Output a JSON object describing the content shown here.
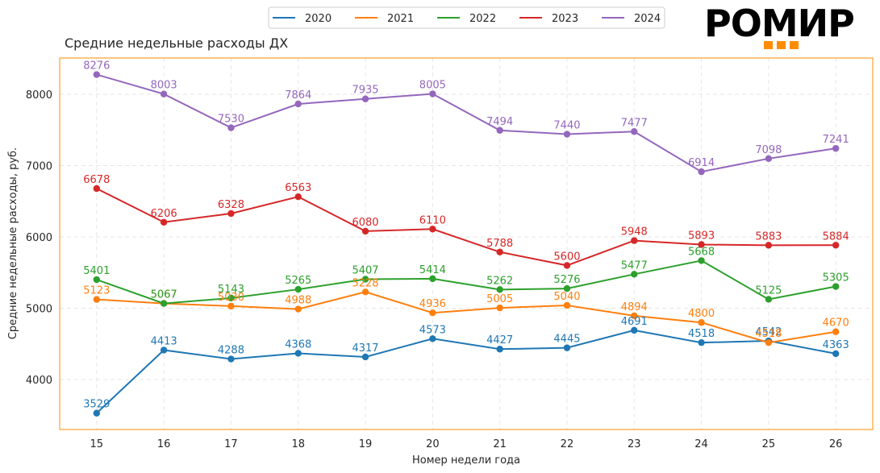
{
  "logo": {
    "text": "РОМИР",
    "accent_color": "#ff8c00"
  },
  "chart_data": {
    "type": "line",
    "title": "Средние недельные расходы ДХ",
    "xlabel": "Номер недели года",
    "ylabel": "Средние недельные расходы, руб.",
    "x": [
      15,
      16,
      17,
      18,
      19,
      20,
      21,
      22,
      23,
      24,
      25,
      26
    ],
    "xticks": [
      "15",
      "16",
      "17",
      "18",
      "19",
      "20",
      "21",
      "22",
      "23",
      "24",
      "25",
      "26"
    ],
    "yticks": [
      "4000",
      "5000",
      "6000",
      "7000",
      "8000"
    ],
    "ytick_values": [
      4000,
      5000,
      6000,
      7000,
      8000
    ],
    "ylim": [
      3300,
      8508
    ],
    "xlim": [
      14.45,
      26.55
    ],
    "grid": true,
    "legend_position": "top-center",
    "frame_color": "#ff8c00",
    "series": [
      {
        "name": "2020",
        "color": "#1f77b4",
        "values": [
          3529,
          4413,
          4288,
          4368,
          4317,
          4573,
          4427,
          4445,
          4691,
          4518,
          4542,
          4363
        ]
      },
      {
        "name": "2021",
        "color": "#ff7f0e",
        "values": [
          5123,
          5067,
          5030,
          4988,
          5228,
          4936,
          5005,
          5040,
          4894,
          4800,
          4518,
          4670
        ]
      },
      {
        "name": "2022",
        "color": "#2ca02c",
        "values": [
          5401,
          5067,
          5143,
          5265,
          5407,
          5414,
          5262,
          5276,
          5477,
          5668,
          5125,
          5305
        ]
      },
      {
        "name": "2023",
        "color": "#d62728",
        "values": [
          6678,
          6206,
          6328,
          6563,
          6080,
          6110,
          5788,
          5600,
          5948,
          5893,
          5883,
          5884
        ]
      },
      {
        "name": "2024",
        "color": "#9467bd",
        "values": [
          8276,
          8003,
          7530,
          7864,
          7935,
          8005,
          7494,
          7440,
          7477,
          6914,
          7098,
          7241
        ]
      }
    ]
  }
}
